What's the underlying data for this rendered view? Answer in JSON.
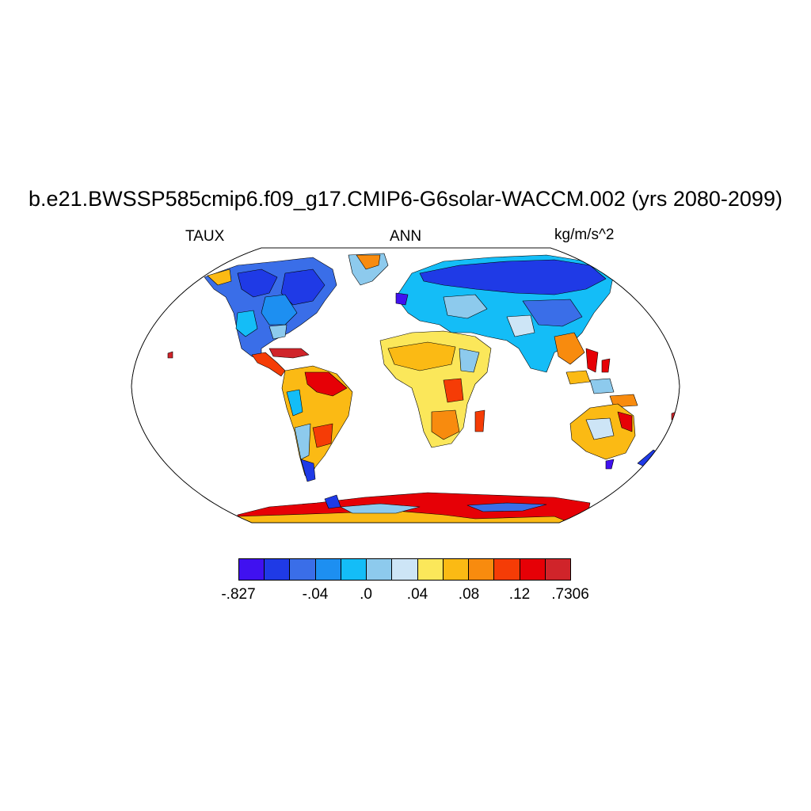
{
  "title": "b.e21.BWSSP585cmip6.f09_g17.CMIP6-G6solar-WACCM.002 (yrs 2080-2099)",
  "left_label": "TAUX",
  "center_label": "ANN",
  "right_label": "kg/m/s^2",
  "projection": "Robinson (world)",
  "colorbar": {
    "colors": [
      "#4011f0",
      "#1f3ae6",
      "#3a6ee8",
      "#1d8ff1",
      "#14bdf7",
      "#8dcaed",
      "#cde5f6",
      "#fbe75a",
      "#fbba14",
      "#f88b0e",
      "#f53c06",
      "#e60006",
      "#d0242a"
    ],
    "tick_labels": [
      "-.827",
      "-.04",
      ".0",
      ".04",
      ".08",
      ".12",
      ".7306"
    ]
  }
}
